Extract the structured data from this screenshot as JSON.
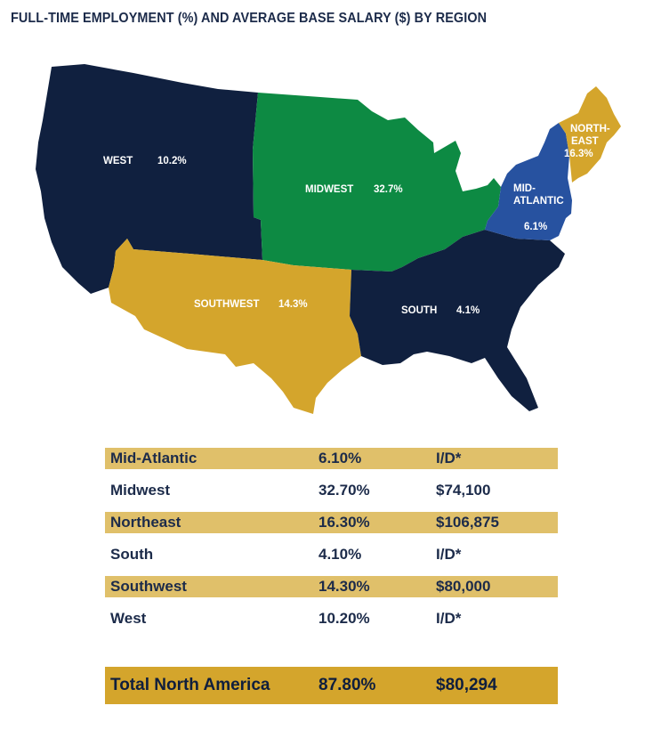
{
  "title": "FULL-TIME EMPLOYMENT (%) AND AVERAGE BASE SALARY ($) BY REGION",
  "colors": {
    "west": "#10203f",
    "midwest": "#0d8a43",
    "southwest": "#d4a52c",
    "south": "#10203f",
    "mid_atlantic": "#2752a0",
    "northeast": "#d4a52c",
    "table_row_shade": "#e0c06a",
    "total_row": "#d4a52c",
    "text": "#1c2b4a"
  },
  "map": {
    "regions": [
      {
        "name": "WEST",
        "value": "10.2%"
      },
      {
        "name": "MIDWEST",
        "value": "32.7%"
      },
      {
        "name": "SOUTHWEST",
        "value": "14.3%"
      },
      {
        "name": "SOUTH",
        "value": "4.1%"
      },
      {
        "name_line1": "MID-",
        "name_line2": "ATLANTIC",
        "value": "6.1%"
      },
      {
        "name_line1": "NORTH-",
        "name_line2": "EAST",
        "value": "16.3%"
      }
    ]
  },
  "table": {
    "rows": [
      {
        "region": "Mid-Atlantic",
        "employment": "6.10%",
        "salary": "I/D*"
      },
      {
        "region": "Midwest",
        "employment": "32.70%",
        "salary": "$74,100"
      },
      {
        "region": "Northeast",
        "employment": "16.30%",
        "salary": "$106,875"
      },
      {
        "region": "South",
        "employment": "4.10%",
        "salary": "I/D*"
      },
      {
        "region": "Southwest",
        "employment": "14.30%",
        "salary": "$80,000"
      },
      {
        "region": "West",
        "employment": "10.20%",
        "salary": "I/D*"
      }
    ],
    "total": {
      "label": "Total North America",
      "employment": "87.80%",
      "salary": "$80,294"
    }
  }
}
